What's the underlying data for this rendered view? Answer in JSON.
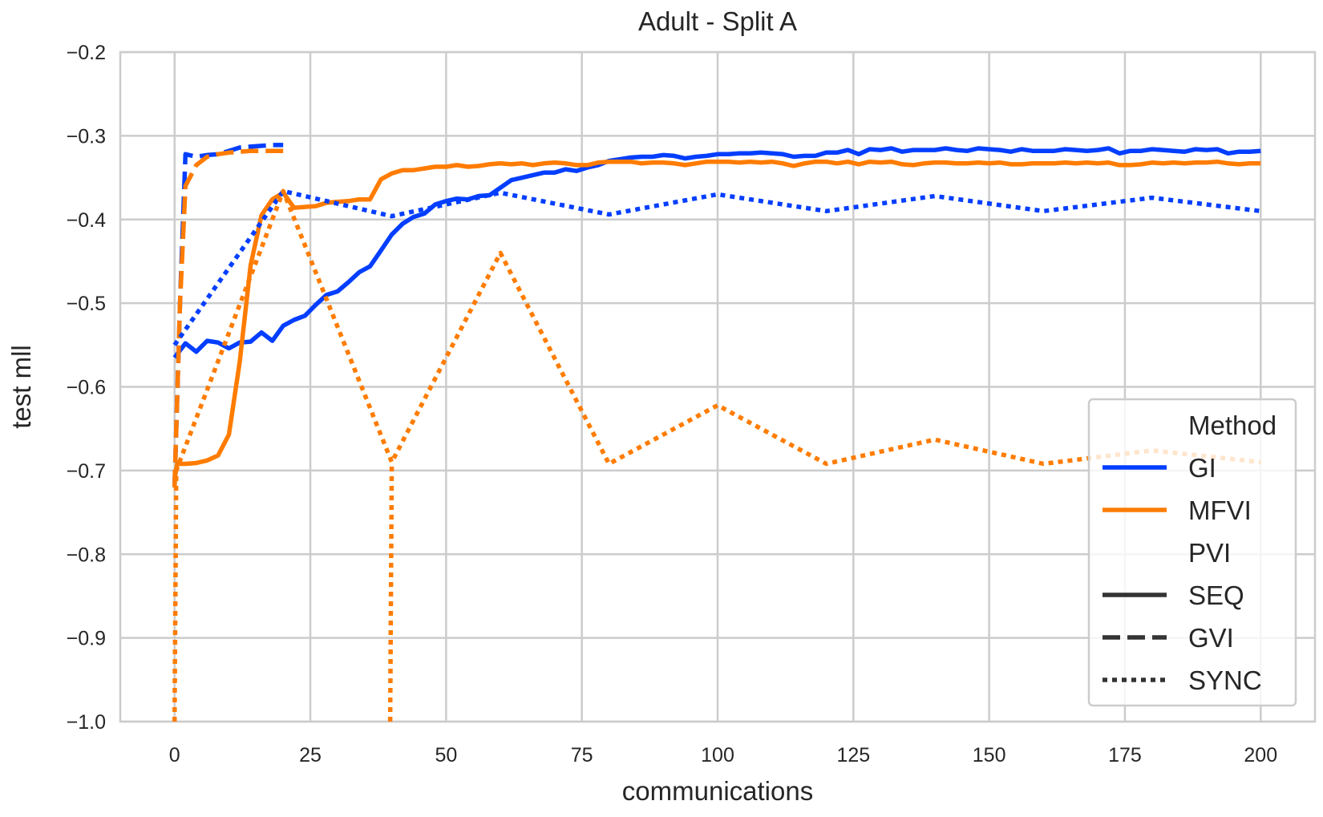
{
  "chart_data": {
    "type": "line",
    "title": "Adult - Split A",
    "xlabel": "communications",
    "ylabel": "test mll",
    "xlim": [
      -10,
      210
    ],
    "ylim": [
      -1.0,
      -0.2
    ],
    "xticks": [
      0,
      25,
      50,
      75,
      100,
      125,
      150,
      175,
      200
    ],
    "xtick_labels": [
      "0",
      "25",
      "50",
      "75",
      "100",
      "125",
      "150",
      "175",
      "200"
    ],
    "yticks": [
      -1.0,
      -0.9,
      -0.8,
      -0.7,
      -0.6,
      -0.5,
      -0.4,
      -0.3,
      -0.2
    ],
    "ytick_labels": [
      "−1.0",
      "−0.9",
      "−0.8",
      "−0.7",
      "−0.6",
      "−0.5",
      "−0.4",
      "−0.3",
      "−0.2"
    ],
    "grid": true,
    "legend": {
      "placement": "lower-right",
      "title1": "Method",
      "title2": "PVI",
      "color_entries": [
        {
          "label": "GI",
          "color": "#023eff"
        },
        {
          "label": "MFVI",
          "color": "#ff7c00"
        }
      ],
      "style_entries": [
        {
          "label": "SEQ",
          "style": "solid"
        },
        {
          "label": "GVI",
          "style": "dashed"
        },
        {
          "label": "SYNC",
          "style": "dotted"
        }
      ],
      "style_color": "#333333"
    },
    "series": [
      {
        "method": "GI",
        "pvi": "SEQ",
        "color": "#023eff",
        "style": "solid",
        "points": [
          [
            0,
            -0.565
          ],
          [
            2,
            -0.548
          ],
          [
            4,
            -0.558
          ],
          [
            6,
            -0.545
          ],
          [
            8,
            -0.547
          ],
          [
            10,
            -0.554
          ],
          [
            12,
            -0.547
          ],
          [
            14,
            -0.546
          ],
          [
            16,
            -0.535
          ],
          [
            18,
            -0.545
          ],
          [
            20,
            -0.527
          ],
          [
            22,
            -0.52
          ],
          [
            24,
            -0.515
          ],
          [
            26,
            -0.502
          ],
          [
            28,
            -0.49
          ],
          [
            30,
            -0.486
          ],
          [
            32,
            -0.475
          ],
          [
            34,
            -0.463
          ],
          [
            36,
            -0.456
          ],
          [
            38,
            -0.437
          ],
          [
            40,
            -0.418
          ],
          [
            42,
            -0.405
          ],
          [
            44,
            -0.397
          ],
          [
            46,
            -0.393
          ],
          [
            48,
            -0.382
          ],
          [
            50,
            -0.378
          ],
          [
            52,
            -0.375
          ],
          [
            54,
            -0.376
          ],
          [
            56,
            -0.372
          ],
          [
            58,
            -0.371
          ],
          [
            60,
            -0.362
          ],
          [
            62,
            -0.353
          ],
          [
            64,
            -0.35
          ],
          [
            66,
            -0.347
          ],
          [
            68,
            -0.344
          ],
          [
            70,
            -0.344
          ],
          [
            72,
            -0.34
          ],
          [
            74,
            -0.342
          ],
          [
            76,
            -0.338
          ],
          [
            78,
            -0.335
          ],
          [
            80,
            -0.33
          ],
          [
            82,
            -0.328
          ],
          [
            84,
            -0.326
          ],
          [
            86,
            -0.325
          ],
          [
            88,
            -0.325
          ],
          [
            90,
            -0.323
          ],
          [
            92,
            -0.324
          ],
          [
            94,
            -0.327
          ],
          [
            96,
            -0.325
          ],
          [
            98,
            -0.324
          ],
          [
            100,
            -0.322
          ],
          [
            102,
            -0.322
          ],
          [
            104,
            -0.321
          ],
          [
            106,
            -0.321
          ],
          [
            108,
            -0.32
          ],
          [
            110,
            -0.321
          ],
          [
            112,
            -0.322
          ],
          [
            114,
            -0.325
          ],
          [
            116,
            -0.324
          ],
          [
            118,
            -0.324
          ],
          [
            120,
            -0.32
          ],
          [
            122,
            -0.32
          ],
          [
            124,
            -0.317
          ],
          [
            126,
            -0.322
          ],
          [
            128,
            -0.316
          ],
          [
            130,
            -0.317
          ],
          [
            132,
            -0.315
          ],
          [
            134,
            -0.319
          ],
          [
            136,
            -0.317
          ],
          [
            138,
            -0.317
          ],
          [
            140,
            -0.317
          ],
          [
            142,
            -0.315
          ],
          [
            144,
            -0.317
          ],
          [
            146,
            -0.318
          ],
          [
            148,
            -0.315
          ],
          [
            150,
            -0.316
          ],
          [
            152,
            -0.317
          ],
          [
            154,
            -0.319
          ],
          [
            156,
            -0.316
          ],
          [
            158,
            -0.318
          ],
          [
            160,
            -0.318
          ],
          [
            162,
            -0.318
          ],
          [
            164,
            -0.316
          ],
          [
            166,
            -0.317
          ],
          [
            168,
            -0.318
          ],
          [
            170,
            -0.317
          ],
          [
            172,
            -0.315
          ],
          [
            174,
            -0.321
          ],
          [
            176,
            -0.318
          ],
          [
            178,
            -0.318
          ],
          [
            180,
            -0.316
          ],
          [
            182,
            -0.317
          ],
          [
            184,
            -0.318
          ],
          [
            186,
            -0.319
          ],
          [
            188,
            -0.316
          ],
          [
            190,
            -0.317
          ],
          [
            192,
            -0.316
          ],
          [
            194,
            -0.321
          ],
          [
            196,
            -0.319
          ],
          [
            198,
            -0.319
          ],
          [
            200,
            -0.318
          ]
        ]
      },
      {
        "method": "MFVI",
        "pvi": "SEQ",
        "color": "#ff7c00",
        "style": "solid",
        "points": [
          [
            0,
            -0.71
          ],
          [
            0.5,
            -0.692
          ],
          [
            2,
            -0.692
          ],
          [
            4,
            -0.691
          ],
          [
            6,
            -0.688
          ],
          [
            8,
            -0.682
          ],
          [
            10,
            -0.657
          ],
          [
            12,
            -0.57
          ],
          [
            14,
            -0.455
          ],
          [
            16,
            -0.395
          ],
          [
            18,
            -0.376
          ],
          [
            20,
            -0.368
          ],
          [
            22,
            -0.386
          ],
          [
            24,
            -0.385
          ],
          [
            26,
            -0.384
          ],
          [
            28,
            -0.38
          ],
          [
            30,
            -0.379
          ],
          [
            32,
            -0.378
          ],
          [
            34,
            -0.376
          ],
          [
            36,
            -0.376
          ],
          [
            38,
            -0.352
          ],
          [
            40,
            -0.345
          ],
          [
            42,
            -0.341
          ],
          [
            44,
            -0.341
          ],
          [
            46,
            -0.339
          ],
          [
            48,
            -0.337
          ],
          [
            50,
            -0.337
          ],
          [
            52,
            -0.335
          ],
          [
            54,
            -0.337
          ],
          [
            56,
            -0.336
          ],
          [
            58,
            -0.334
          ],
          [
            60,
            -0.333
          ],
          [
            62,
            -0.334
          ],
          [
            64,
            -0.333
          ],
          [
            66,
            -0.335
          ],
          [
            68,
            -0.333
          ],
          [
            70,
            -0.332
          ],
          [
            72,
            -0.333
          ],
          [
            74,
            -0.335
          ],
          [
            76,
            -0.335
          ],
          [
            78,
            -0.332
          ],
          [
            80,
            -0.331
          ],
          [
            82,
            -0.331
          ],
          [
            84,
            -0.331
          ],
          [
            86,
            -0.333
          ],
          [
            88,
            -0.332
          ],
          [
            90,
            -0.332
          ],
          [
            92,
            -0.333
          ],
          [
            94,
            -0.335
          ],
          [
            96,
            -0.333
          ],
          [
            98,
            -0.331
          ],
          [
            100,
            -0.331
          ],
          [
            102,
            -0.331
          ],
          [
            104,
            -0.332
          ],
          [
            106,
            -0.331
          ],
          [
            108,
            -0.332
          ],
          [
            110,
            -0.331
          ],
          [
            112,
            -0.333
          ],
          [
            114,
            -0.336
          ],
          [
            116,
            -0.333
          ],
          [
            118,
            -0.331
          ],
          [
            120,
            -0.331
          ],
          [
            122,
            -0.333
          ],
          [
            124,
            -0.331
          ],
          [
            126,
            -0.334
          ],
          [
            128,
            -0.331
          ],
          [
            130,
            -0.332
          ],
          [
            132,
            -0.331
          ],
          [
            134,
            -0.334
          ],
          [
            136,
            -0.335
          ],
          [
            138,
            -0.333
          ],
          [
            140,
            -0.332
          ],
          [
            142,
            -0.332
          ],
          [
            144,
            -0.333
          ],
          [
            146,
            -0.333
          ],
          [
            148,
            -0.332
          ],
          [
            150,
            -0.333
          ],
          [
            152,
            -0.332
          ],
          [
            154,
            -0.334
          ],
          [
            156,
            -0.334
          ],
          [
            158,
            -0.333
          ],
          [
            160,
            -0.333
          ],
          [
            162,
            -0.333
          ],
          [
            164,
            -0.332
          ],
          [
            166,
            -0.333
          ],
          [
            168,
            -0.332
          ],
          [
            170,
            -0.333
          ],
          [
            172,
            -0.332
          ],
          [
            174,
            -0.335
          ],
          [
            176,
            -0.335
          ],
          [
            178,
            -0.334
          ],
          [
            180,
            -0.332
          ],
          [
            182,
            -0.333
          ],
          [
            184,
            -0.332
          ],
          [
            186,
            -0.333
          ],
          [
            188,
            -0.332
          ],
          [
            190,
            -0.332
          ],
          [
            192,
            -0.331
          ],
          [
            194,
            -0.333
          ],
          [
            196,
            -0.334
          ],
          [
            198,
            -0.333
          ],
          [
            200,
            -0.333
          ]
        ]
      },
      {
        "method": "GI",
        "pvi": "GVI",
        "color": "#023eff",
        "style": "dashed",
        "points": [
          [
            0,
            -0.72
          ],
          [
            1,
            -0.5
          ],
          [
            2,
            -0.322
          ],
          [
            4,
            -0.325
          ],
          [
            6,
            -0.323
          ],
          [
            8,
            -0.322
          ],
          [
            10,
            -0.318
          ],
          [
            12,
            -0.314
          ],
          [
            14,
            -0.313
          ],
          [
            16,
            -0.312
          ],
          [
            18,
            -0.311
          ],
          [
            20,
            -0.311
          ]
        ]
      },
      {
        "method": "MFVI",
        "pvi": "GVI",
        "color": "#ff7c00",
        "style": "dashed",
        "points": [
          [
            0,
            -0.72
          ],
          [
            1,
            -0.5
          ],
          [
            2,
            -0.36
          ],
          [
            4,
            -0.335
          ],
          [
            6,
            -0.325
          ],
          [
            8,
            -0.322
          ],
          [
            10,
            -0.32
          ],
          [
            12,
            -0.319
          ],
          [
            14,
            -0.318
          ],
          [
            16,
            -0.318
          ],
          [
            18,
            -0.318
          ],
          [
            20,
            -0.318
          ]
        ]
      },
      {
        "method": "GI",
        "pvi": "SYNC",
        "color": "#023eff",
        "style": "dotted",
        "points": [
          [
            0,
            -0.55
          ],
          [
            20,
            -0.366
          ],
          [
            40,
            -0.396
          ],
          [
            60,
            -0.368
          ],
          [
            80,
            -0.394
          ],
          [
            100,
            -0.37
          ],
          [
            120,
            -0.39
          ],
          [
            140,
            -0.372
          ],
          [
            160,
            -0.39
          ],
          [
            180,
            -0.374
          ],
          [
            200,
            -0.39
          ]
        ]
      },
      {
        "method": "MFVI",
        "pvi": "SYNC",
        "color": "#ff7c00",
        "style": "dotted",
        "points": [
          [
            0,
            -1.0
          ],
          [
            0.3,
            -0.7
          ],
          [
            20,
            -0.366
          ],
          [
            40,
            -0.69
          ],
          [
            60,
            -0.44
          ],
          [
            80,
            -0.692
          ],
          [
            100,
            -0.622
          ],
          [
            120,
            -0.692
          ],
          [
            140,
            -0.663
          ],
          [
            160,
            -0.692
          ],
          [
            180,
            -0.676
          ],
          [
            200,
            -0.69
          ]
        ]
      },
      {
        "method": "MFVI",
        "pvi": "SYNC",
        "color": "#ff7c00",
        "style": "dotted",
        "points": [
          [
            39.7,
            -1.0
          ],
          [
            40,
            -0.69
          ]
        ]
      }
    ]
  }
}
